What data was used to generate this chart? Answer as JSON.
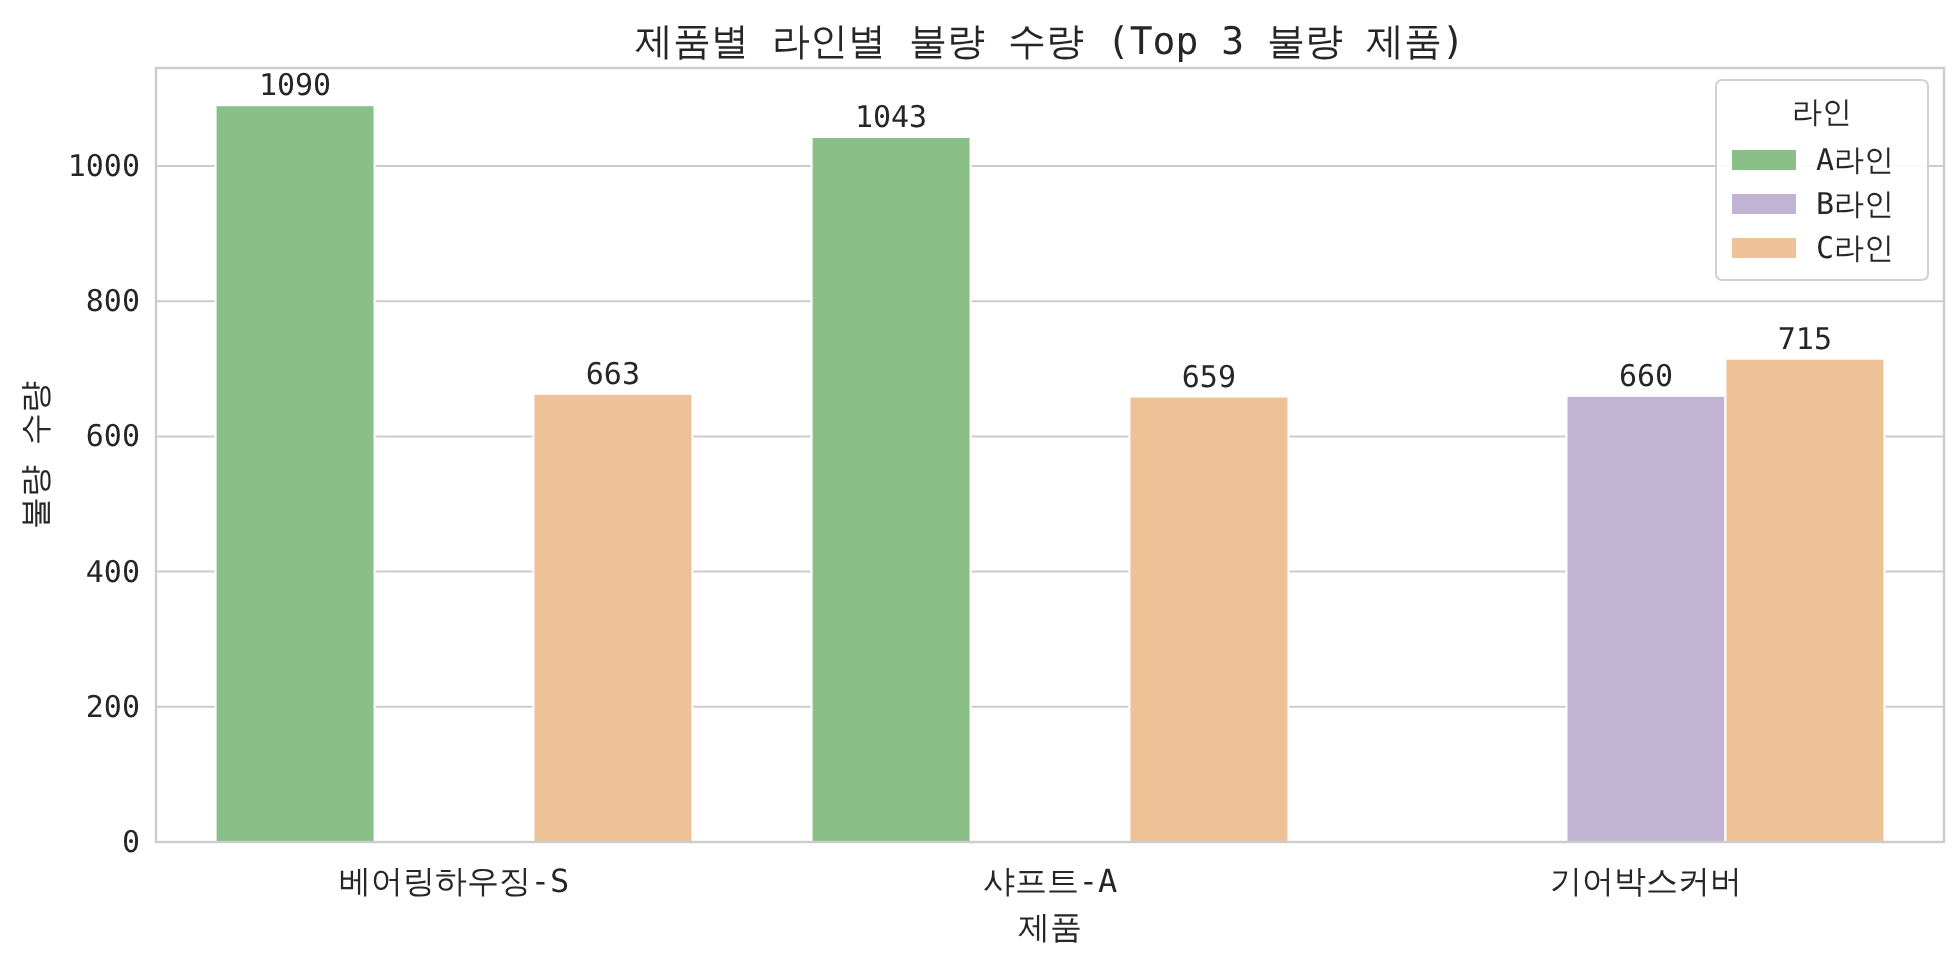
{
  "chart_data": {
    "type": "bar",
    "title": "제품별 라인별 불량 수량 (Top 3 불량 제품)",
    "xlabel": "제품",
    "ylabel": "불량 수량",
    "legend_title": "라인",
    "categories": [
      "베어링하우징-S",
      "샤프트-A",
      "기어박스커버"
    ],
    "series": [
      {
        "name": "A라인",
        "color": "#8abf87",
        "values": [
          1090,
          1043,
          null
        ]
      },
      {
        "name": "B라인",
        "color": "#c1b3d3",
        "values": [
          null,
          null,
          660
        ]
      },
      {
        "name": "C라인",
        "color": "#eec197",
        "values": [
          663,
          659,
          715
        ]
      }
    ],
    "ylim": [
      0,
      1145
    ],
    "yticks": [
      0,
      200,
      400,
      600,
      800,
      1000
    ],
    "grid": "y",
    "legend": "top right",
    "data_labels": true
  }
}
